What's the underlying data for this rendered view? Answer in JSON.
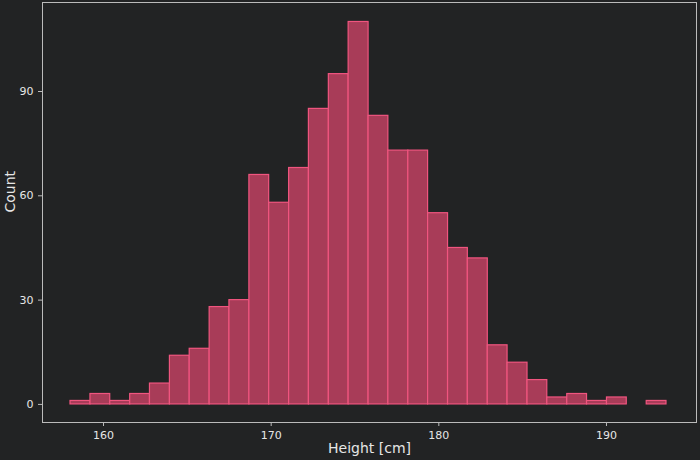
{
  "chart_data": {
    "type": "histogram",
    "x_label": "Height [cm]",
    "y_label": "Count",
    "bins": [
      158.03,
      159.22,
      160.4,
      161.59,
      162.77,
      163.96,
      165.14,
      166.33,
      167.51,
      168.7,
      169.88,
      171.07,
      172.25,
      173.44,
      174.62,
      175.81,
      176.99,
      178.18,
      179.36,
      180.55,
      181.73,
      182.92,
      184.1,
      185.29,
      186.47,
      187.66,
      188.84,
      190.03,
      191.21,
      192.4,
      193.58
    ],
    "values": [
      1,
      3,
      1,
      3,
      6,
      14,
      16,
      28,
      30,
      66,
      58,
      68,
      85,
      95,
      110,
      83,
      73,
      73,
      55,
      45,
      42,
      17,
      12,
      7,
      2,
      3,
      1,
      2,
      0,
      1
    ],
    "color": "#a83c58",
    "xlim": [
      156.36,
      195.37
    ],
    "xticks": [
      160,
      170,
      180,
      190
    ],
    "ylim": [
      -5.2,
      115.6
    ],
    "yticks": [
      0,
      30,
      60,
      90
    ],
    "grid": false
  }
}
